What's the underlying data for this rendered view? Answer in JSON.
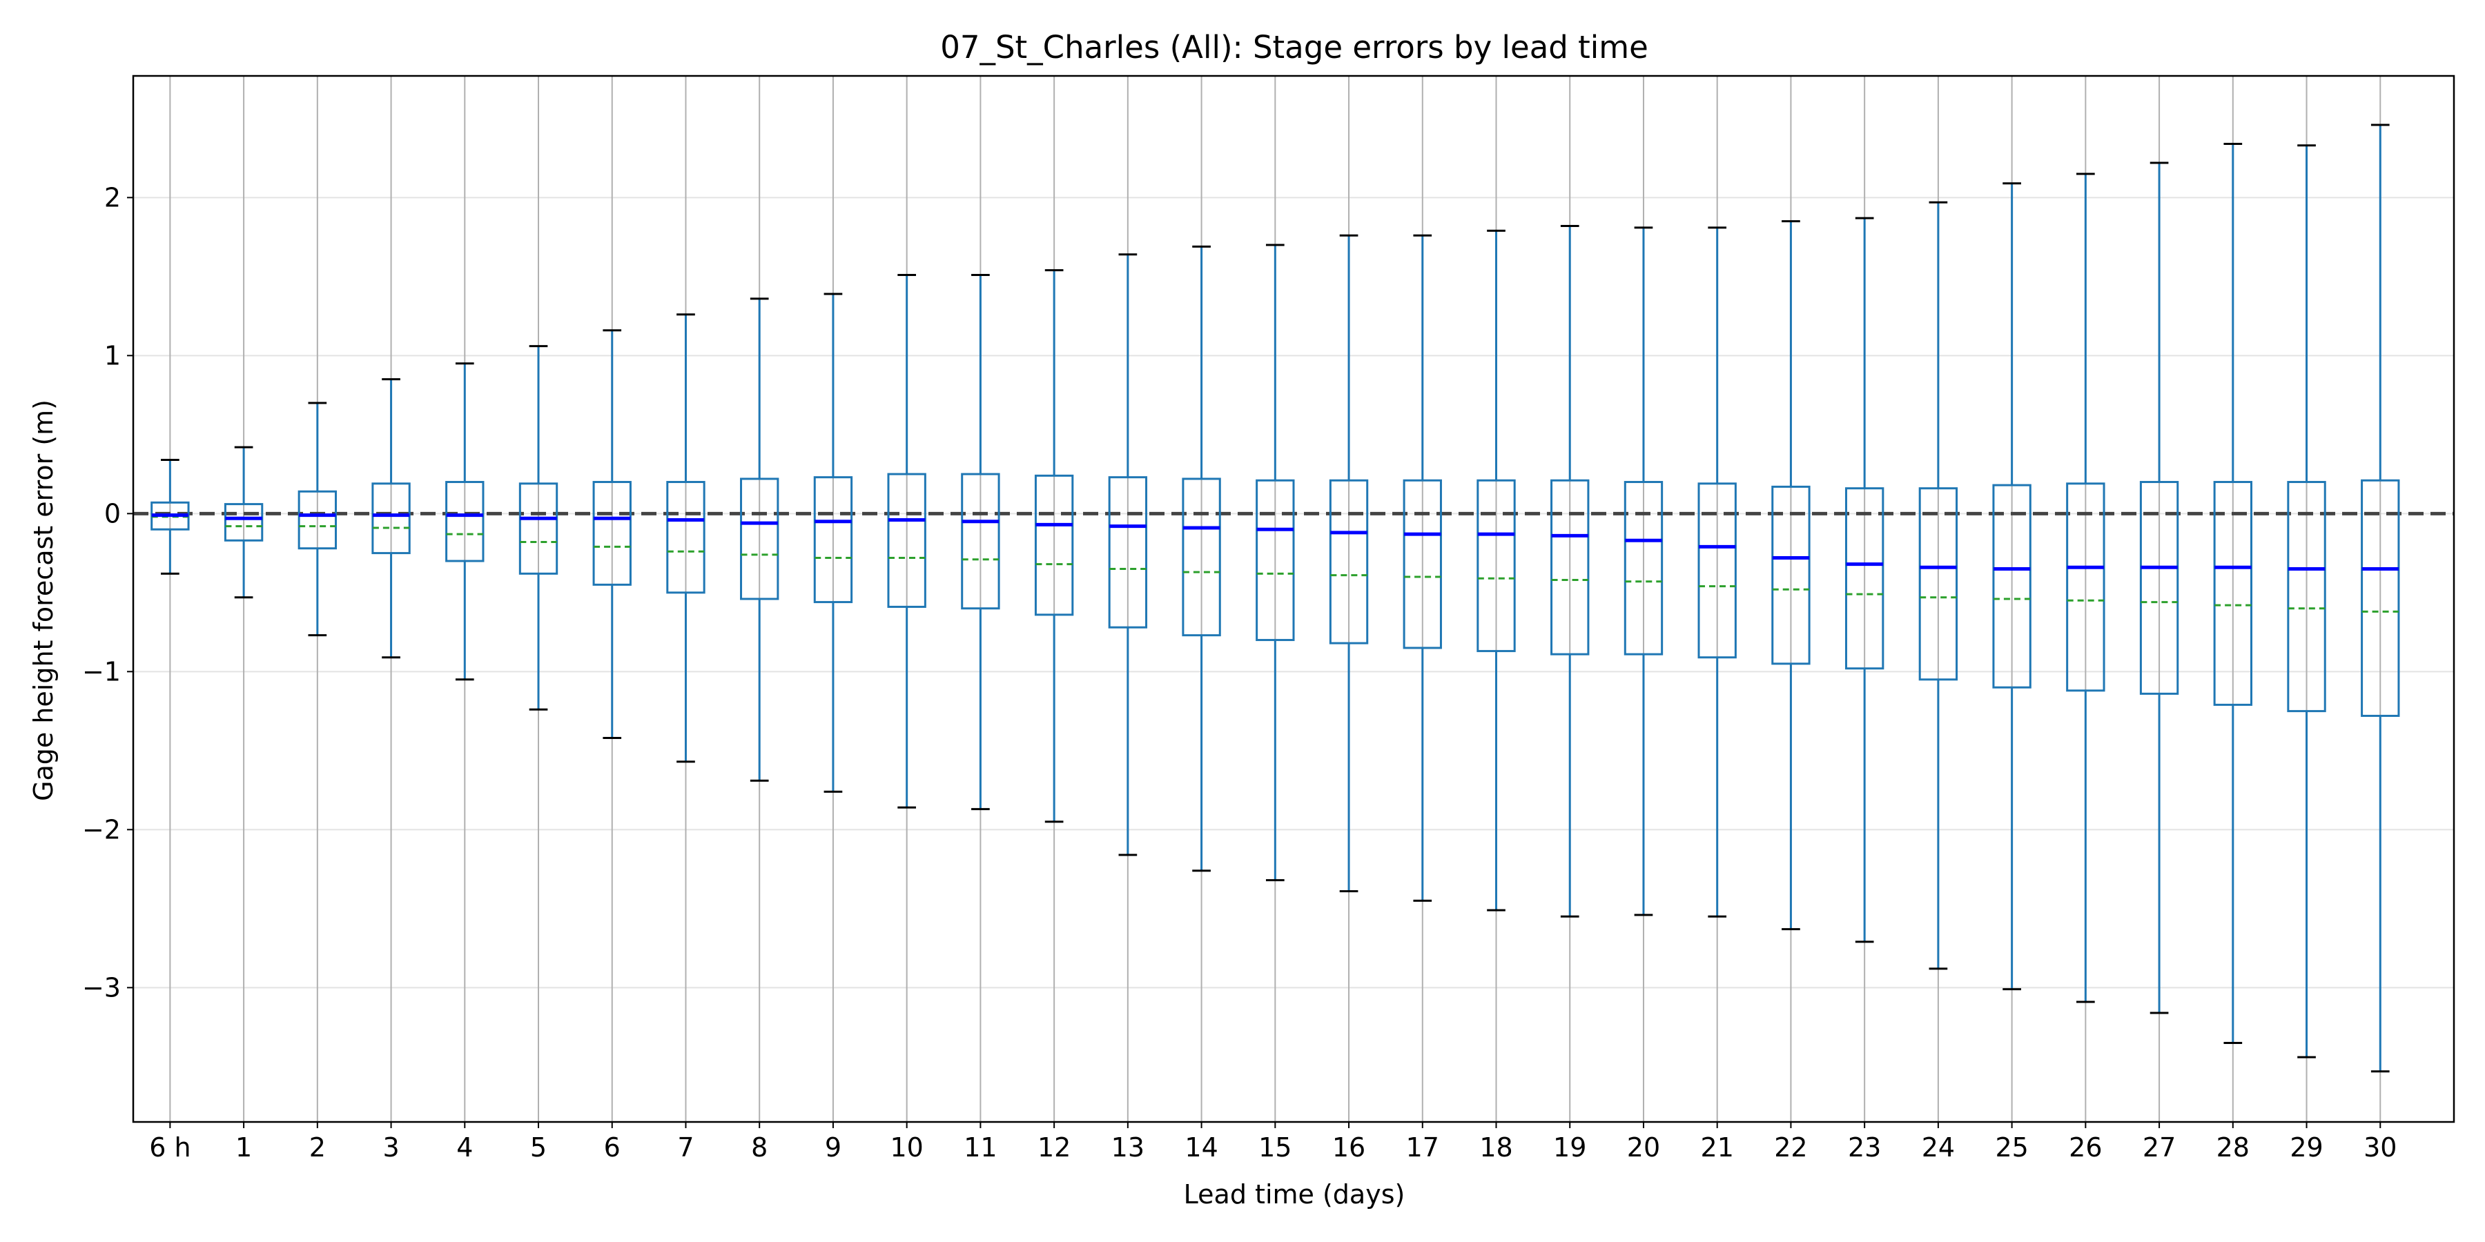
{
  "chart_data": {
    "type": "box",
    "title": "07_St_Charles (All): Stage errors by lead time",
    "xlabel": "Lead time (days)",
    "ylabel": "Gage height forecast error (m)",
    "categories": [
      "6 h",
      "1",
      "2",
      "3",
      "4",
      "5",
      "6",
      "7",
      "8",
      "9",
      "10",
      "11",
      "12",
      "13",
      "14",
      "15",
      "16",
      "17",
      "18",
      "19",
      "20",
      "21",
      "22",
      "23",
      "24",
      "25",
      "26",
      "27",
      "28",
      "29",
      "30"
    ],
    "ylim": [
      -3.85,
      2.77
    ],
    "yticks": [
      -3,
      -2,
      -1,
      0,
      1,
      2
    ],
    "ytick_labels": [
      "−3",
      "−2",
      "−1",
      "0",
      "1",
      "2"
    ],
    "grid": {
      "x": true,
      "y": true
    },
    "zero_line": 0,
    "colors": {
      "box": "#1f77b4",
      "median": "#0000ff",
      "mean": "#2ca02c",
      "whisker_cap": "#000000",
      "zero_line": "#444444",
      "grid_x": "#b0b0b0",
      "grid_y": "#e3e3e3"
    },
    "boxes": [
      {
        "whislo": -0.38,
        "q1": -0.1,
        "med": -0.01,
        "mean": -0.02,
        "q3": 0.07,
        "whishi": 0.34
      },
      {
        "whislo": -0.53,
        "q1": -0.17,
        "med": -0.03,
        "mean": -0.08,
        "q3": 0.06,
        "whishi": 0.42
      },
      {
        "whislo": -0.77,
        "q1": -0.22,
        "med": -0.01,
        "mean": -0.08,
        "q3": 0.14,
        "whishi": 0.7
      },
      {
        "whislo": -0.91,
        "q1": -0.25,
        "med": -0.01,
        "mean": -0.09,
        "q3": 0.19,
        "whishi": 0.85
      },
      {
        "whislo": -1.05,
        "q1": -0.3,
        "med": -0.01,
        "mean": -0.13,
        "q3": 0.2,
        "whishi": 0.95
      },
      {
        "whislo": -1.24,
        "q1": -0.38,
        "med": -0.03,
        "mean": -0.18,
        "q3": 0.19,
        "whishi": 1.06
      },
      {
        "whislo": -1.42,
        "q1": -0.45,
        "med": -0.03,
        "mean": -0.21,
        "q3": 0.2,
        "whishi": 1.16
      },
      {
        "whislo": -1.57,
        "q1": -0.5,
        "med": -0.04,
        "mean": -0.24,
        "q3": 0.2,
        "whishi": 1.26
      },
      {
        "whislo": -1.69,
        "q1": -0.54,
        "med": -0.06,
        "mean": -0.26,
        "q3": 0.22,
        "whishi": 1.36
      },
      {
        "whislo": -1.76,
        "q1": -0.56,
        "med": -0.05,
        "mean": -0.28,
        "q3": 0.23,
        "whishi": 1.39
      },
      {
        "whislo": -1.86,
        "q1": -0.59,
        "med": -0.04,
        "mean": -0.28,
        "q3": 0.25,
        "whishi": 1.51
      },
      {
        "whislo": -1.87,
        "q1": -0.6,
        "med": -0.05,
        "mean": -0.29,
        "q3": 0.25,
        "whishi": 1.51
      },
      {
        "whislo": -1.95,
        "q1": -0.64,
        "med": -0.07,
        "mean": -0.32,
        "q3": 0.24,
        "whishi": 1.54
      },
      {
        "whislo": -2.16,
        "q1": -0.72,
        "med": -0.08,
        "mean": -0.35,
        "q3": 0.23,
        "whishi": 1.64
      },
      {
        "whislo": -2.26,
        "q1": -0.77,
        "med": -0.09,
        "mean": -0.37,
        "q3": 0.22,
        "whishi": 1.69
      },
      {
        "whislo": -2.32,
        "q1": -0.8,
        "med": -0.1,
        "mean": -0.38,
        "q3": 0.21,
        "whishi": 1.7
      },
      {
        "whislo": -2.39,
        "q1": -0.82,
        "med": -0.12,
        "mean": -0.39,
        "q3": 0.21,
        "whishi": 1.76
      },
      {
        "whislo": -2.45,
        "q1": -0.85,
        "med": -0.13,
        "mean": -0.4,
        "q3": 0.21,
        "whishi": 1.76
      },
      {
        "whislo": -2.51,
        "q1": -0.87,
        "med": -0.13,
        "mean": -0.41,
        "q3": 0.21,
        "whishi": 1.79
      },
      {
        "whislo": -2.55,
        "q1": -0.89,
        "med": -0.14,
        "mean": -0.42,
        "q3": 0.21,
        "whishi": 1.82
      },
      {
        "whislo": -2.54,
        "q1": -0.89,
        "med": -0.17,
        "mean": -0.43,
        "q3": 0.2,
        "whishi": 1.81
      },
      {
        "whislo": -2.55,
        "q1": -0.91,
        "med": -0.21,
        "mean": -0.46,
        "q3": 0.19,
        "whishi": 1.81
      },
      {
        "whislo": -2.63,
        "q1": -0.95,
        "med": -0.28,
        "mean": -0.48,
        "q3": 0.17,
        "whishi": 1.85
      },
      {
        "whislo": -2.71,
        "q1": -0.98,
        "med": -0.32,
        "mean": -0.51,
        "q3": 0.16,
        "whishi": 1.87
      },
      {
        "whislo": -2.88,
        "q1": -1.05,
        "med": -0.34,
        "mean": -0.53,
        "q3": 0.16,
        "whishi": 1.97
      },
      {
        "whislo": -3.01,
        "q1": -1.1,
        "med": -0.35,
        "mean": -0.54,
        "q3": 0.18,
        "whishi": 2.09
      },
      {
        "whislo": -3.09,
        "q1": -1.12,
        "med": -0.34,
        "mean": -0.55,
        "q3": 0.19,
        "whishi": 2.15
      },
      {
        "whislo": -3.16,
        "q1": -1.14,
        "med": -0.34,
        "mean": -0.56,
        "q3": 0.2,
        "whishi": 2.22
      },
      {
        "whislo": -3.35,
        "q1": -1.21,
        "med": -0.34,
        "mean": -0.58,
        "q3": 0.2,
        "whishi": 2.34
      },
      {
        "whislo": -3.44,
        "q1": -1.25,
        "med": -0.35,
        "mean": -0.6,
        "q3": 0.2,
        "whishi": 2.33
      },
      {
        "whislo": -3.53,
        "q1": -1.28,
        "med": -0.35,
        "mean": -0.62,
        "q3": 0.21,
        "whishi": 2.46
      }
    ]
  }
}
